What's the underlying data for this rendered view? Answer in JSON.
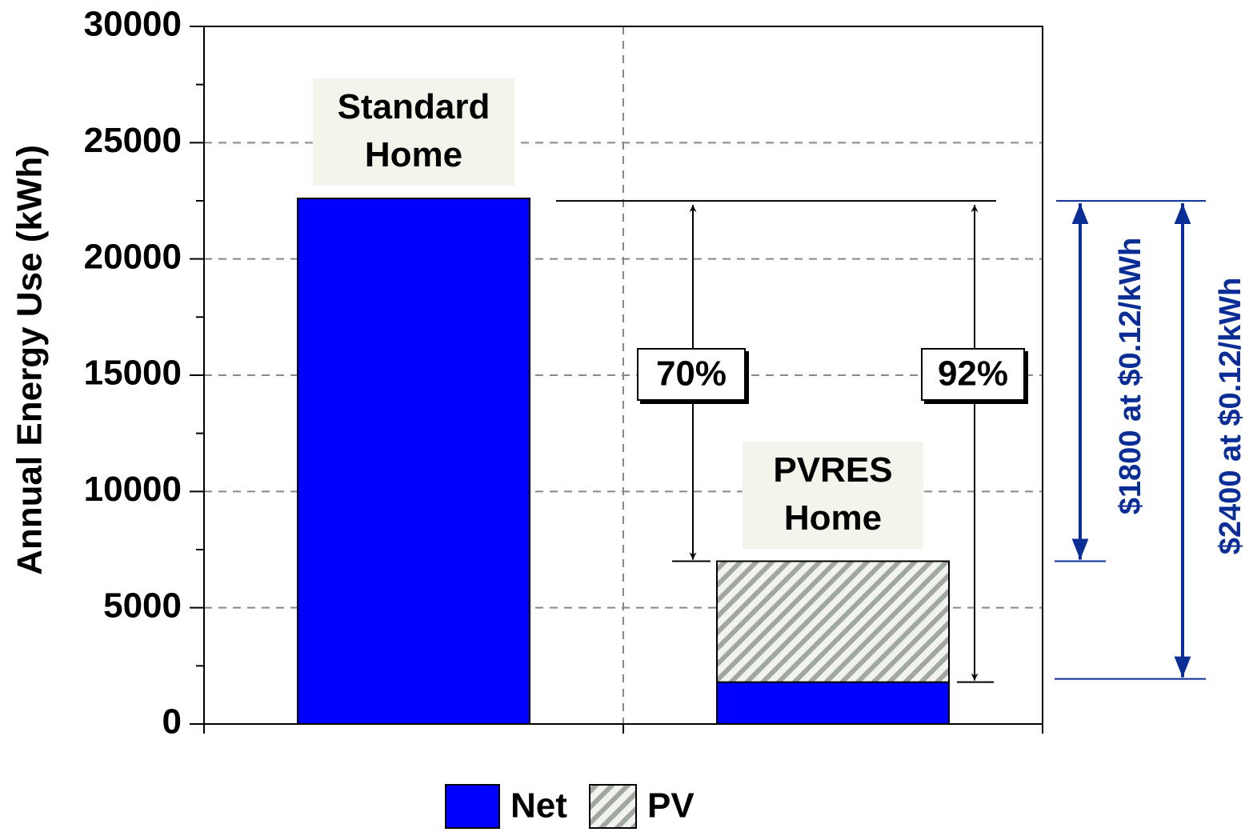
{
  "chart_data": {
    "type": "bar",
    "stacked": true,
    "y_label": "Annual Energy Use (kWh)",
    "categories": [
      "Standard Home",
      "PVRES Home"
    ],
    "series": [
      {
        "name": "Net",
        "color": "#0000ff",
        "values": [
          22600,
          1800
        ]
      },
      {
        "name": "PV",
        "color": "#a0a8a0",
        "pattern": "hatch",
        "values": [
          0,
          5200
        ]
      }
    ],
    "ylim": [
      0,
      30000
    ],
    "yticks": [
      0,
      5000,
      10000,
      15000,
      20000,
      25000,
      30000
    ],
    "grid": true,
    "legend": "bottom",
    "annotations": [
      "70%",
      "92%",
      "$1800 at $0.12/kWh",
      "$2400 at $0.12/kWh"
    ]
  }
}
